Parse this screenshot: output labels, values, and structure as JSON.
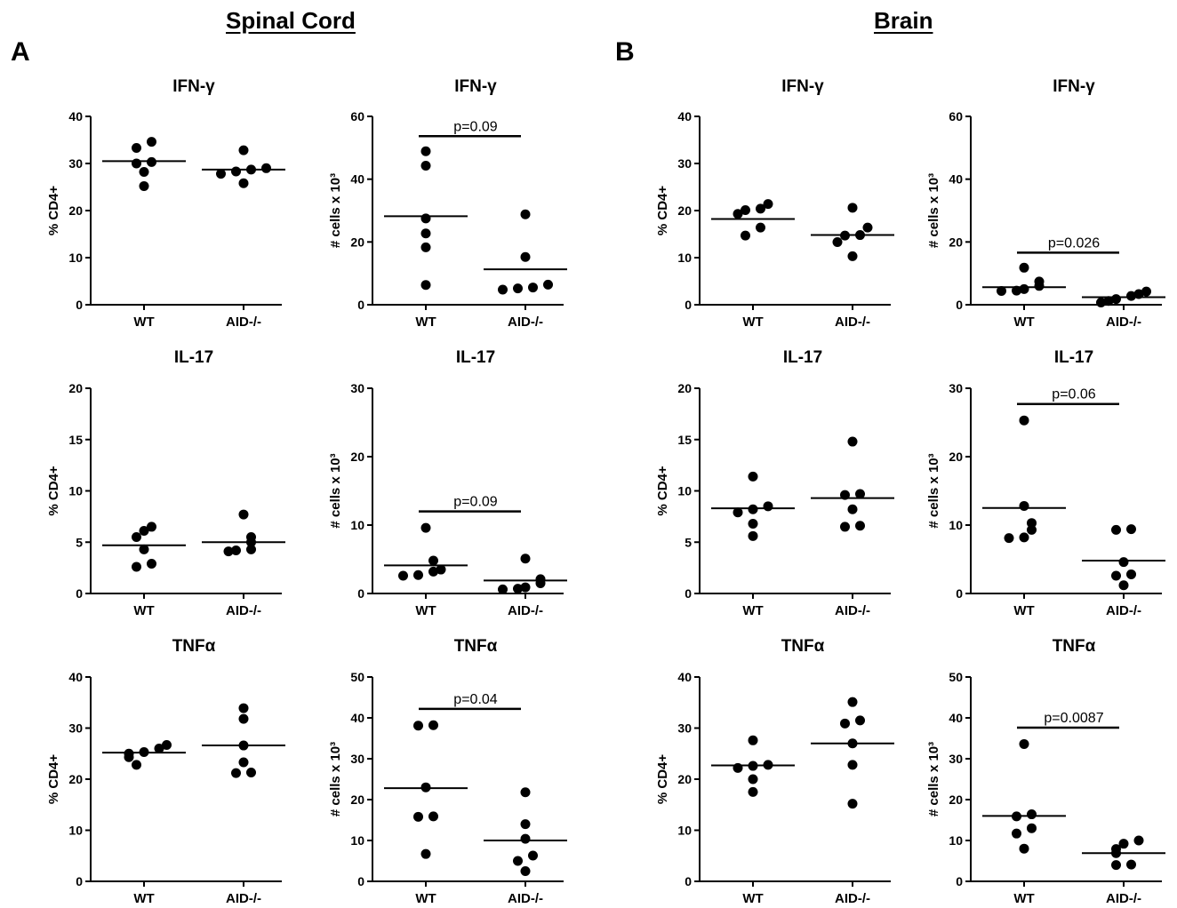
{
  "figure": {
    "sections": [
      {
        "title": "Spinal Cord",
        "letter": "A"
      },
      {
        "title": "Brain",
        "letter": "B"
      }
    ]
  },
  "chart_data": [
    {
      "type": "scatter",
      "section": "Spinal Cord",
      "title": "IFN-γ",
      "ylabel": "% CD4+",
      "categories": [
        "WT",
        "AID-/-"
      ],
      "ylim": [
        0,
        40
      ],
      "yticks": [
        0,
        10,
        20,
        30,
        40
      ],
      "series": [
        {
          "values": [
            [
              25.2,
              28.2,
              30.0,
              30.3,
              33.3,
              34.6
            ],
            [
              25.8,
              27.8,
              28.3,
              28.7,
              29.0,
              32.8
            ]
          ]
        }
      ],
      "medians": [
        30.5,
        28.7
      ],
      "pvalue": null
    },
    {
      "type": "scatter",
      "section": "Spinal Cord",
      "title": "IFN-γ",
      "ylabel": "# cells x 10³",
      "categories": [
        "WT",
        "AID-/-"
      ],
      "ylim": [
        0,
        60
      ],
      "yticks": [
        0,
        20,
        40,
        60
      ],
      "series": [
        {
          "values": [
            [
              6.3,
              18.3,
              22.7,
              27.5,
              44.3,
              48.9
            ],
            [
              4.8,
              5.2,
              5.5,
              6.4,
              15.2,
              28.8
            ]
          ]
        }
      ],
      "medians": [
        28.2,
        11.3
      ],
      "pvalue": "p=0.09"
    },
    {
      "type": "scatter",
      "section": "Brain",
      "title": "IFN-γ",
      "ylabel": "% CD4+",
      "categories": [
        "WT",
        "AID-/-"
      ],
      "ylim": [
        0,
        40
      ],
      "yticks": [
        0,
        10,
        20,
        30,
        40
      ],
      "series": [
        {
          "values": [
            [
              14.7,
              16.4,
              19.3,
              20.1,
              20.4,
              21.4
            ],
            [
              10.3,
              13.3,
              14.7,
              14.8,
              16.4,
              20.6
            ]
          ]
        }
      ],
      "medians": [
        18.2,
        14.8
      ],
      "pvalue": null
    },
    {
      "type": "scatter",
      "section": "Brain",
      "title": "IFN-γ",
      "ylabel": "# cells x 10³",
      "categories": [
        "WT",
        "AID-/-"
      ],
      "ylim": [
        0,
        60
      ],
      "yticks": [
        0,
        20,
        40,
        60
      ],
      "series": [
        {
          "values": [
            [
              4.4,
              4.5,
              5.0,
              6.0,
              7.4,
              11.8
            ],
            [
              0.7,
              1.2,
              1.8,
              2.8,
              3.4,
              4.2
            ]
          ]
        }
      ],
      "medians": [
        5.6,
        2.4
      ],
      "pvalue": "p=0.026"
    },
    {
      "type": "scatter",
      "section": "Spinal Cord",
      "title": "IL-17",
      "ylabel": "% CD4+",
      "categories": [
        "WT",
        "AID-/-"
      ],
      "ylim": [
        0,
        20
      ],
      "yticks": [
        0,
        5,
        10,
        15,
        20
      ],
      "series": [
        {
          "values": [
            [
              2.6,
              2.9,
              4.3,
              5.5,
              6.1,
              6.5
            ],
            [
              4.1,
              4.2,
              4.3,
              5.0,
              5.5,
              7.7
            ]
          ]
        }
      ],
      "medians": [
        4.7,
        5.0
      ],
      "pvalue": null
    },
    {
      "type": "scatter",
      "section": "Spinal Cord",
      "title": "IL-17",
      "ylabel": "# cells x 10³",
      "categories": [
        "WT",
        "AID-/-"
      ],
      "ylim": [
        0,
        30
      ],
      "yticks": [
        0,
        10,
        20,
        30
      ],
      "series": [
        {
          "values": [
            [
              2.6,
              2.7,
              3.2,
              3.5,
              4.8,
              9.6
            ],
            [
              0.6,
              0.7,
              0.9,
              1.5,
              2.1,
              5.1
            ]
          ]
        }
      ],
      "medians": [
        4.1,
        1.9
      ],
      "pvalue": "p=0.09"
    },
    {
      "type": "scatter",
      "section": "Brain",
      "title": "IL-17",
      "ylabel": "% CD4+",
      "categories": [
        "WT",
        "AID-/-"
      ],
      "ylim": [
        0,
        20
      ],
      "yticks": [
        0,
        5,
        10,
        15,
        20
      ],
      "series": [
        {
          "values": [
            [
              5.6,
              6.8,
              7.9,
              8.2,
              8.5,
              11.4
            ],
            [
              6.5,
              6.6,
              8.2,
              9.6,
              9.7,
              14.8
            ]
          ]
        }
      ],
      "medians": [
        8.3,
        9.3
      ],
      "pvalue": null
    },
    {
      "type": "scatter",
      "section": "Brain",
      "title": "IL-17",
      "ylabel": "# cells x 10³",
      "categories": [
        "WT",
        "AID-/-"
      ],
      "ylim": [
        0,
        30
      ],
      "yticks": [
        0,
        10,
        20,
        30
      ],
      "series": [
        {
          "values": [
            [
              8.1,
              8.2,
              9.3,
              10.3,
              12.8,
              25.3
            ],
            [
              1.2,
              2.6,
              2.8,
              4.6,
              9.3,
              9.4
            ]
          ]
        }
      ],
      "medians": [
        12.5,
        4.8
      ],
      "pvalue": "p=0.06"
    },
    {
      "type": "scatter",
      "section": "Spinal Cord",
      "title": "TNFα",
      "ylabel": "% CD4+",
      "categories": [
        "WT",
        "AID-/-"
      ],
      "ylim": [
        0,
        40
      ],
      "yticks": [
        0,
        10,
        20,
        30,
        40
      ],
      "series": [
        {
          "values": [
            [
              22.8,
              24.3,
              25.0,
              25.3,
              26.0,
              26.7
            ],
            [
              21.2,
              21.3,
              23.3,
              26.6,
              31.8,
              33.9
            ]
          ]
        }
      ],
      "medians": [
        25.2,
        26.6
      ],
      "pvalue": null
    },
    {
      "type": "scatter",
      "section": "Spinal Cord",
      "title": "TNFα",
      "ylabel": "# cells x 10³",
      "categories": [
        "WT",
        "AID-/-"
      ],
      "ylim": [
        0,
        50
      ],
      "yticks": [
        0,
        10,
        20,
        30,
        40,
        50
      ],
      "series": [
        {
          "values": [
            [
              6.7,
              15.8,
              15.9,
              23.0,
              38.1,
              38.2
            ],
            [
              2.5,
              5.0,
              6.3,
              10.4,
              14.0,
              21.8
            ]
          ]
        }
      ],
      "medians": [
        22.8,
        10.0
      ],
      "pvalue": "p=0.04"
    },
    {
      "type": "scatter",
      "section": "Brain",
      "title": "TNFα",
      "ylabel": "% CD4+",
      "categories": [
        "WT",
        "AID-/-"
      ],
      "ylim": [
        0,
        40
      ],
      "yticks": [
        0,
        10,
        20,
        30,
        40
      ],
      "series": [
        {
          "values": [
            [
              17.5,
              20.0,
              22.2,
              22.6,
              22.8,
              27.6
            ],
            [
              15.2,
              22.8,
              27.0,
              30.9,
              31.5,
              35.1
            ]
          ]
        }
      ],
      "medians": [
        22.7,
        27.0
      ],
      "pvalue": null
    },
    {
      "type": "scatter",
      "section": "Brain",
      "title": "TNFα",
      "ylabel": "# cells x 10³",
      "categories": [
        "WT",
        "AID-/-"
      ],
      "ylim": [
        0,
        50
      ],
      "yticks": [
        0,
        10,
        20,
        30,
        40,
        50
      ],
      "series": [
        {
          "values": [
            [
              8.0,
              11.7,
              13.0,
              15.9,
              16.4,
              33.6
            ],
            [
              4.0,
              4.1,
              6.9,
              7.9,
              9.2,
              10.0
            ]
          ]
        }
      ],
      "medians": [
        16.0,
        6.9
      ],
      "pvalue": "p=0.0087"
    }
  ]
}
